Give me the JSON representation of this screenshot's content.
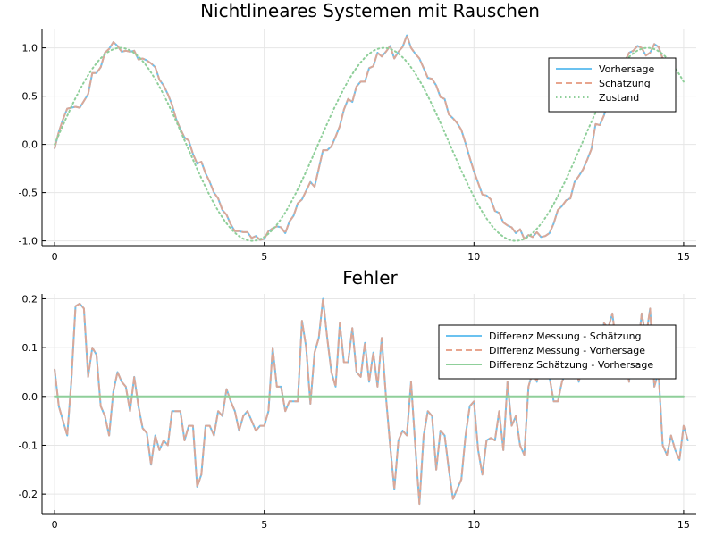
{
  "chart_data": [
    {
      "type": "line",
      "title": "Nichtlineares Systemen mit Rauschen",
      "xlabel": "",
      "ylabel": "",
      "xlim": [
        -0.3,
        15.3
      ],
      "ylim": [
        -1.05,
        1.2
      ],
      "x_ticks": [
        0,
        5,
        10,
        15
      ],
      "y_ticks": [
        -1.0,
        -0.5,
        0.0,
        0.5,
        1.0
      ],
      "y_tick_labels": [
        "-1.0",
        "-0.5",
        "0.0",
        "0.5",
        "1.0"
      ],
      "grid": true,
      "legend_position": "top-right",
      "x_step": 0.1,
      "series": [
        {
          "name": "Vorhersage",
          "color": "#6bc2f0",
          "style": "solid",
          "values": [
            -0.04,
            0.13,
            0.26,
            0.37,
            0.38,
            0.39,
            0.38,
            0.45,
            0.52,
            0.74,
            0.74,
            0.8,
            0.95,
            0.99,
            1.06,
            1.02,
            0.96,
            0.97,
            0.96,
            0.97,
            0.88,
            0.89,
            0.87,
            0.84,
            0.8,
            0.67,
            0.61,
            0.52,
            0.41,
            0.26,
            0.16,
            0.07,
            0.04,
            -0.1,
            -0.2,
            -0.18,
            -0.3,
            -0.39,
            -0.5,
            -0.56,
            -0.68,
            -0.73,
            -0.83,
            -0.9,
            -0.9,
            -0.91,
            -0.91,
            -0.97,
            -0.95,
            -0.99,
            -0.98,
            -0.9,
            -0.87,
            -0.85,
            -0.86,
            -0.92,
            -0.8,
            -0.74,
            -0.61,
            -0.57,
            -0.48,
            -0.39,
            -0.44,
            -0.25,
            -0.06,
            -0.06,
            -0.02,
            0.08,
            0.19,
            0.36,
            0.47,
            0.44,
            0.6,
            0.65,
            0.65,
            0.79,
            0.81,
            0.95,
            0.91,
            0.96,
            1.02,
            0.89,
            0.96,
            1.01,
            1.13,
            1.0,
            0.94,
            0.89,
            0.79,
            0.69,
            0.68,
            0.61,
            0.49,
            0.47,
            0.31,
            0.27,
            0.22,
            0.15,
            0.01,
            -0.14,
            -0.28,
            -0.4,
            -0.52,
            -0.53,
            -0.57,
            -0.69,
            -0.71,
            -0.81,
            -0.84,
            -0.86,
            -0.92,
            -0.88,
            -0.98,
            -0.94,
            -0.96,
            -0.91,
            -0.96,
            -0.95,
            -0.92,
            -0.82,
            -0.68,
            -0.64,
            -0.58,
            -0.56,
            -0.39,
            -0.33,
            -0.26,
            -0.16,
            -0.05,
            0.21,
            0.2,
            0.3,
            0.45,
            0.53,
            0.68,
            0.82,
            0.86,
            0.95,
            0.97,
            1.02,
            1.0,
            0.92,
            0.95,
            1.04,
            1.01,
            0.89,
            0.84,
            0.74
          ]
        },
        {
          "name": "Schätzung",
          "color": "#e8a58e",
          "style": "dashed",
          "values": [
            -0.04,
            0.13,
            0.26,
            0.37,
            0.38,
            0.39,
            0.38,
            0.45,
            0.52,
            0.74,
            0.74,
            0.8,
            0.95,
            0.99,
            1.06,
            1.02,
            0.96,
            0.97,
            0.96,
            0.97,
            0.88,
            0.89,
            0.87,
            0.84,
            0.8,
            0.67,
            0.61,
            0.52,
            0.41,
            0.26,
            0.16,
            0.07,
            0.04,
            -0.1,
            -0.2,
            -0.18,
            -0.3,
            -0.39,
            -0.5,
            -0.56,
            -0.68,
            -0.73,
            -0.83,
            -0.9,
            -0.9,
            -0.91,
            -0.91,
            -0.97,
            -0.95,
            -0.99,
            -0.98,
            -0.9,
            -0.87,
            -0.85,
            -0.86,
            -0.92,
            -0.8,
            -0.74,
            -0.61,
            -0.57,
            -0.48,
            -0.39,
            -0.44,
            -0.25,
            -0.06,
            -0.06,
            -0.02,
            0.08,
            0.19,
            0.36,
            0.47,
            0.44,
            0.6,
            0.65,
            0.65,
            0.79,
            0.81,
            0.95,
            0.91,
            0.96,
            1.02,
            0.89,
            0.96,
            1.01,
            1.13,
            1.0,
            0.94,
            0.89,
            0.79,
            0.69,
            0.68,
            0.61,
            0.49,
            0.47,
            0.31,
            0.27,
            0.22,
            0.15,
            0.01,
            -0.14,
            -0.28,
            -0.4,
            -0.52,
            -0.53,
            -0.57,
            -0.69,
            -0.71,
            -0.81,
            -0.84,
            -0.86,
            -0.92,
            -0.88,
            -0.98,
            -0.94,
            -0.96,
            -0.91,
            -0.96,
            -0.95,
            -0.92,
            -0.82,
            -0.68,
            -0.64,
            -0.58,
            -0.56,
            -0.39,
            -0.33,
            -0.26,
            -0.16,
            -0.05,
            0.21,
            0.2,
            0.3,
            0.45,
            0.53,
            0.68,
            0.82,
            0.86,
            0.95,
            0.97,
            1.02,
            1.0,
            0.92,
            0.95,
            1.04,
            1.01,
            0.89,
            0.84,
            0.74
          ]
        },
        {
          "name": "Zustand",
          "color": "#8fcf9a",
          "style": "dotted",
          "function": "sin(x)",
          "x_start": 0,
          "x_end": 15
        }
      ]
    },
    {
      "type": "line",
      "title": "Fehler",
      "xlabel": "",
      "ylabel": "",
      "xlim": [
        -0.3,
        15.3
      ],
      "ylim": [
        -0.24,
        0.21
      ],
      "x_ticks": [
        0,
        5,
        10,
        15
      ],
      "y_ticks": [
        -0.2,
        -0.1,
        0.0,
        0.1,
        0.2
      ],
      "y_tick_labels": [
        "-0.2",
        "-0.1",
        "0.0",
        "0.1",
        "0.2"
      ],
      "grid": true,
      "legend_position": "top-right",
      "x_step": 0.1,
      "series": [
        {
          "name": "Differenz Messung - Schätzung",
          "color": "#6bc2f0",
          "style": "solid",
          "values": [
            0.055,
            -0.02,
            -0.05,
            -0.08,
            0.03,
            0.185,
            0.19,
            0.18,
            0.04,
            0.1,
            0.085,
            -0.02,
            -0.04,
            -0.08,
            0.01,
            0.05,
            0.03,
            0.02,
            -0.03,
            0.04,
            -0.02,
            -0.065,
            -0.075,
            -0.14,
            -0.08,
            -0.11,
            -0.09,
            -0.1,
            -0.03,
            -0.03,
            -0.03,
            -0.09,
            -0.06,
            -0.06,
            -0.185,
            -0.16,
            -0.06,
            -0.06,
            -0.08,
            -0.03,
            -0.04,
            0.015,
            -0.01,
            -0.03,
            -0.07,
            -0.04,
            -0.03,
            -0.05,
            -0.07,
            -0.06,
            -0.06,
            -0.03,
            0.1,
            0.02,
            0.02,
            -0.03,
            -0.01,
            -0.01,
            -0.01,
            0.155,
            0.1,
            -0.015,
            0.09,
            0.12,
            0.2,
            0.12,
            0.05,
            0.02,
            0.15,
            0.07,
            0.07,
            0.14,
            0.05,
            0.04,
            0.11,
            0.03,
            0.09,
            0.02,
            0.12,
            0.0,
            -0.1,
            -0.19,
            -0.09,
            -0.07,
            -0.08,
            0.03,
            -0.1,
            -0.22,
            -0.08,
            -0.03,
            -0.04,
            -0.15,
            -0.07,
            -0.08,
            -0.15,
            -0.21,
            -0.19,
            -0.17,
            -0.08,
            -0.02,
            -0.01,
            -0.11,
            -0.16,
            -0.09,
            -0.085,
            -0.09,
            -0.03,
            -0.11,
            0.03,
            -0.06,
            -0.04,
            -0.1,
            -0.12,
            0.02,
            0.05,
            0.03,
            0.08,
            0.1,
            0.04,
            -0.01,
            -0.01,
            0.03,
            0.05,
            0.04,
            0.07,
            0.03,
            0.07,
            0.1,
            0.12,
            0.05,
            0.08,
            0.15,
            0.14,
            0.17,
            0.1,
            0.09,
            0.08,
            0.03,
            0.14,
            0.09,
            0.17,
            0.12,
            0.18,
            0.02,
            0.05,
            -0.1,
            -0.12,
            -0.08,
            -0.11,
            -0.13,
            -0.06,
            -0.09
          ]
        },
        {
          "name": "Differenz Messung - Vorhersage",
          "color": "#e8a58e",
          "style": "dashed",
          "values": [
            0.055,
            -0.02,
            -0.05,
            -0.08,
            0.03,
            0.185,
            0.19,
            0.18,
            0.04,
            0.1,
            0.085,
            -0.02,
            -0.04,
            -0.08,
            0.01,
            0.05,
            0.03,
            0.02,
            -0.03,
            0.04,
            -0.02,
            -0.065,
            -0.075,
            -0.14,
            -0.08,
            -0.11,
            -0.09,
            -0.1,
            -0.03,
            -0.03,
            -0.03,
            -0.09,
            -0.06,
            -0.06,
            -0.185,
            -0.16,
            -0.06,
            -0.06,
            -0.08,
            -0.03,
            -0.04,
            0.015,
            -0.01,
            -0.03,
            -0.07,
            -0.04,
            -0.03,
            -0.05,
            -0.07,
            -0.06,
            -0.06,
            -0.03,
            0.1,
            0.02,
            0.02,
            -0.03,
            -0.01,
            -0.01,
            -0.01,
            0.155,
            0.1,
            -0.015,
            0.09,
            0.12,
            0.2,
            0.12,
            0.05,
            0.02,
            0.15,
            0.07,
            0.07,
            0.14,
            0.05,
            0.04,
            0.11,
            0.03,
            0.09,
            0.02,
            0.12,
            0.0,
            -0.1,
            -0.19,
            -0.09,
            -0.07,
            -0.08,
            0.03,
            -0.1,
            -0.22,
            -0.08,
            -0.03,
            -0.04,
            -0.15,
            -0.07,
            -0.08,
            -0.15,
            -0.21,
            -0.19,
            -0.17,
            -0.08,
            -0.02,
            -0.01,
            -0.11,
            -0.16,
            -0.09,
            -0.085,
            -0.09,
            -0.03,
            -0.11,
            0.03,
            -0.06,
            -0.04,
            -0.1,
            -0.12,
            0.02,
            0.05,
            0.03,
            0.08,
            0.1,
            0.04,
            -0.01,
            -0.01,
            0.03,
            0.05,
            0.04,
            0.07,
            0.03,
            0.07,
            0.1,
            0.12,
            0.05,
            0.08,
            0.15,
            0.14,
            0.17,
            0.1,
            0.09,
            0.08,
            0.03,
            0.14,
            0.09,
            0.17,
            0.12,
            0.18,
            0.02,
            0.05,
            -0.1,
            -0.12,
            -0.08,
            -0.11,
            -0.13,
            -0.06,
            -0.09
          ]
        },
        {
          "name": "Differenz Schätzung - Vorhersage",
          "color": "#8fcf9a",
          "style": "solid",
          "constant": 0.0,
          "x_start": 0,
          "x_end": 15
        }
      ]
    }
  ]
}
